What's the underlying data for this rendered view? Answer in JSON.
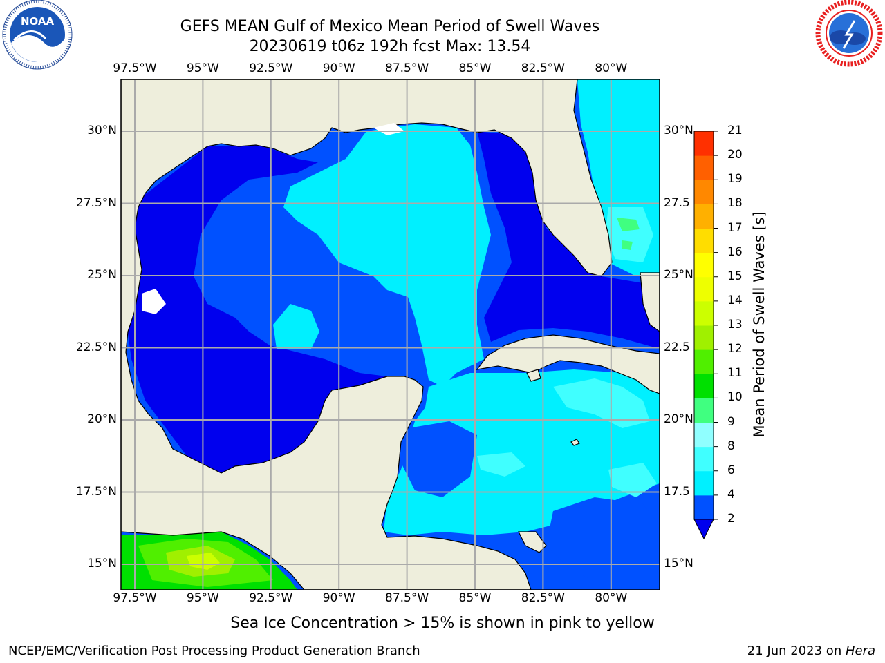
{
  "title": {
    "line1": "GEFS MEAN Gulf of Mexico Mean Period of Swell Waves",
    "line2": "20230619 t06z 192h fcst   Max: 13.54"
  },
  "logos": {
    "left": {
      "icon": "noaa-logo",
      "text": "NOAA",
      "ring_text": "NATIONAL OCEANIC AND ATMOSPHERIC ADMINISTRATION · U.S. DEPARTMENT OF COMMERCE"
    },
    "right": {
      "icon": "nws-logo",
      "ring_text": "NATIONAL WEATHER SERVICE"
    }
  },
  "map": {
    "lon_ticks": [
      "97.5°W",
      "95°W",
      "92.5°W",
      "90°W",
      "87.5°W",
      "85°W",
      "82.5°W",
      "80°W"
    ],
    "lat_ticks": [
      "30°N",
      "27.5°N",
      "25°N",
      "22.5°N",
      "20°N",
      "17.5°N",
      "15°N"
    ],
    "lat_ticks_right": [
      "30°N",
      "27.5",
      "25°N",
      "22.5",
      "20°N",
      "17.5",
      "15°N"
    ],
    "extent": {
      "lon": [
        -98,
        -79.1
      ],
      "lat": [
        14,
        31.9
      ]
    },
    "colors": {
      "land": "#eeeedc",
      "gridline": "#aaaaaa",
      "coast": "#000000"
    }
  },
  "colorbar": {
    "label": "Mean Period of Swell Waves [s]",
    "ticks": [
      "2",
      "4",
      "6",
      "8",
      "9",
      "10",
      "11",
      "12",
      "13",
      "14",
      "15",
      "16",
      "17",
      "18",
      "19",
      "20",
      "21"
    ],
    "colors": [
      "#0051ff",
      "#00f0ff",
      "#40ffff",
      "#90ffff",
      "#40ff80",
      "#00e000",
      "#50ef00",
      "#a0f000",
      "#ccff00",
      "#eeff00",
      "#ffff00",
      "#ffdd00",
      "#ffb000",
      "#ff8800",
      "#ff6000",
      "#ff3000",
      "#ff0000"
    ],
    "extend_color": "#0000ee"
  },
  "ice_note": "Sea Ice Concentration > 15% is shown in pink to yellow",
  "footer": {
    "left": "NCEP/EMC/Verification Post Processing Product Generation Branch",
    "right_date": "21 Jun 2023 on ",
    "right_host": "Hera"
  }
}
